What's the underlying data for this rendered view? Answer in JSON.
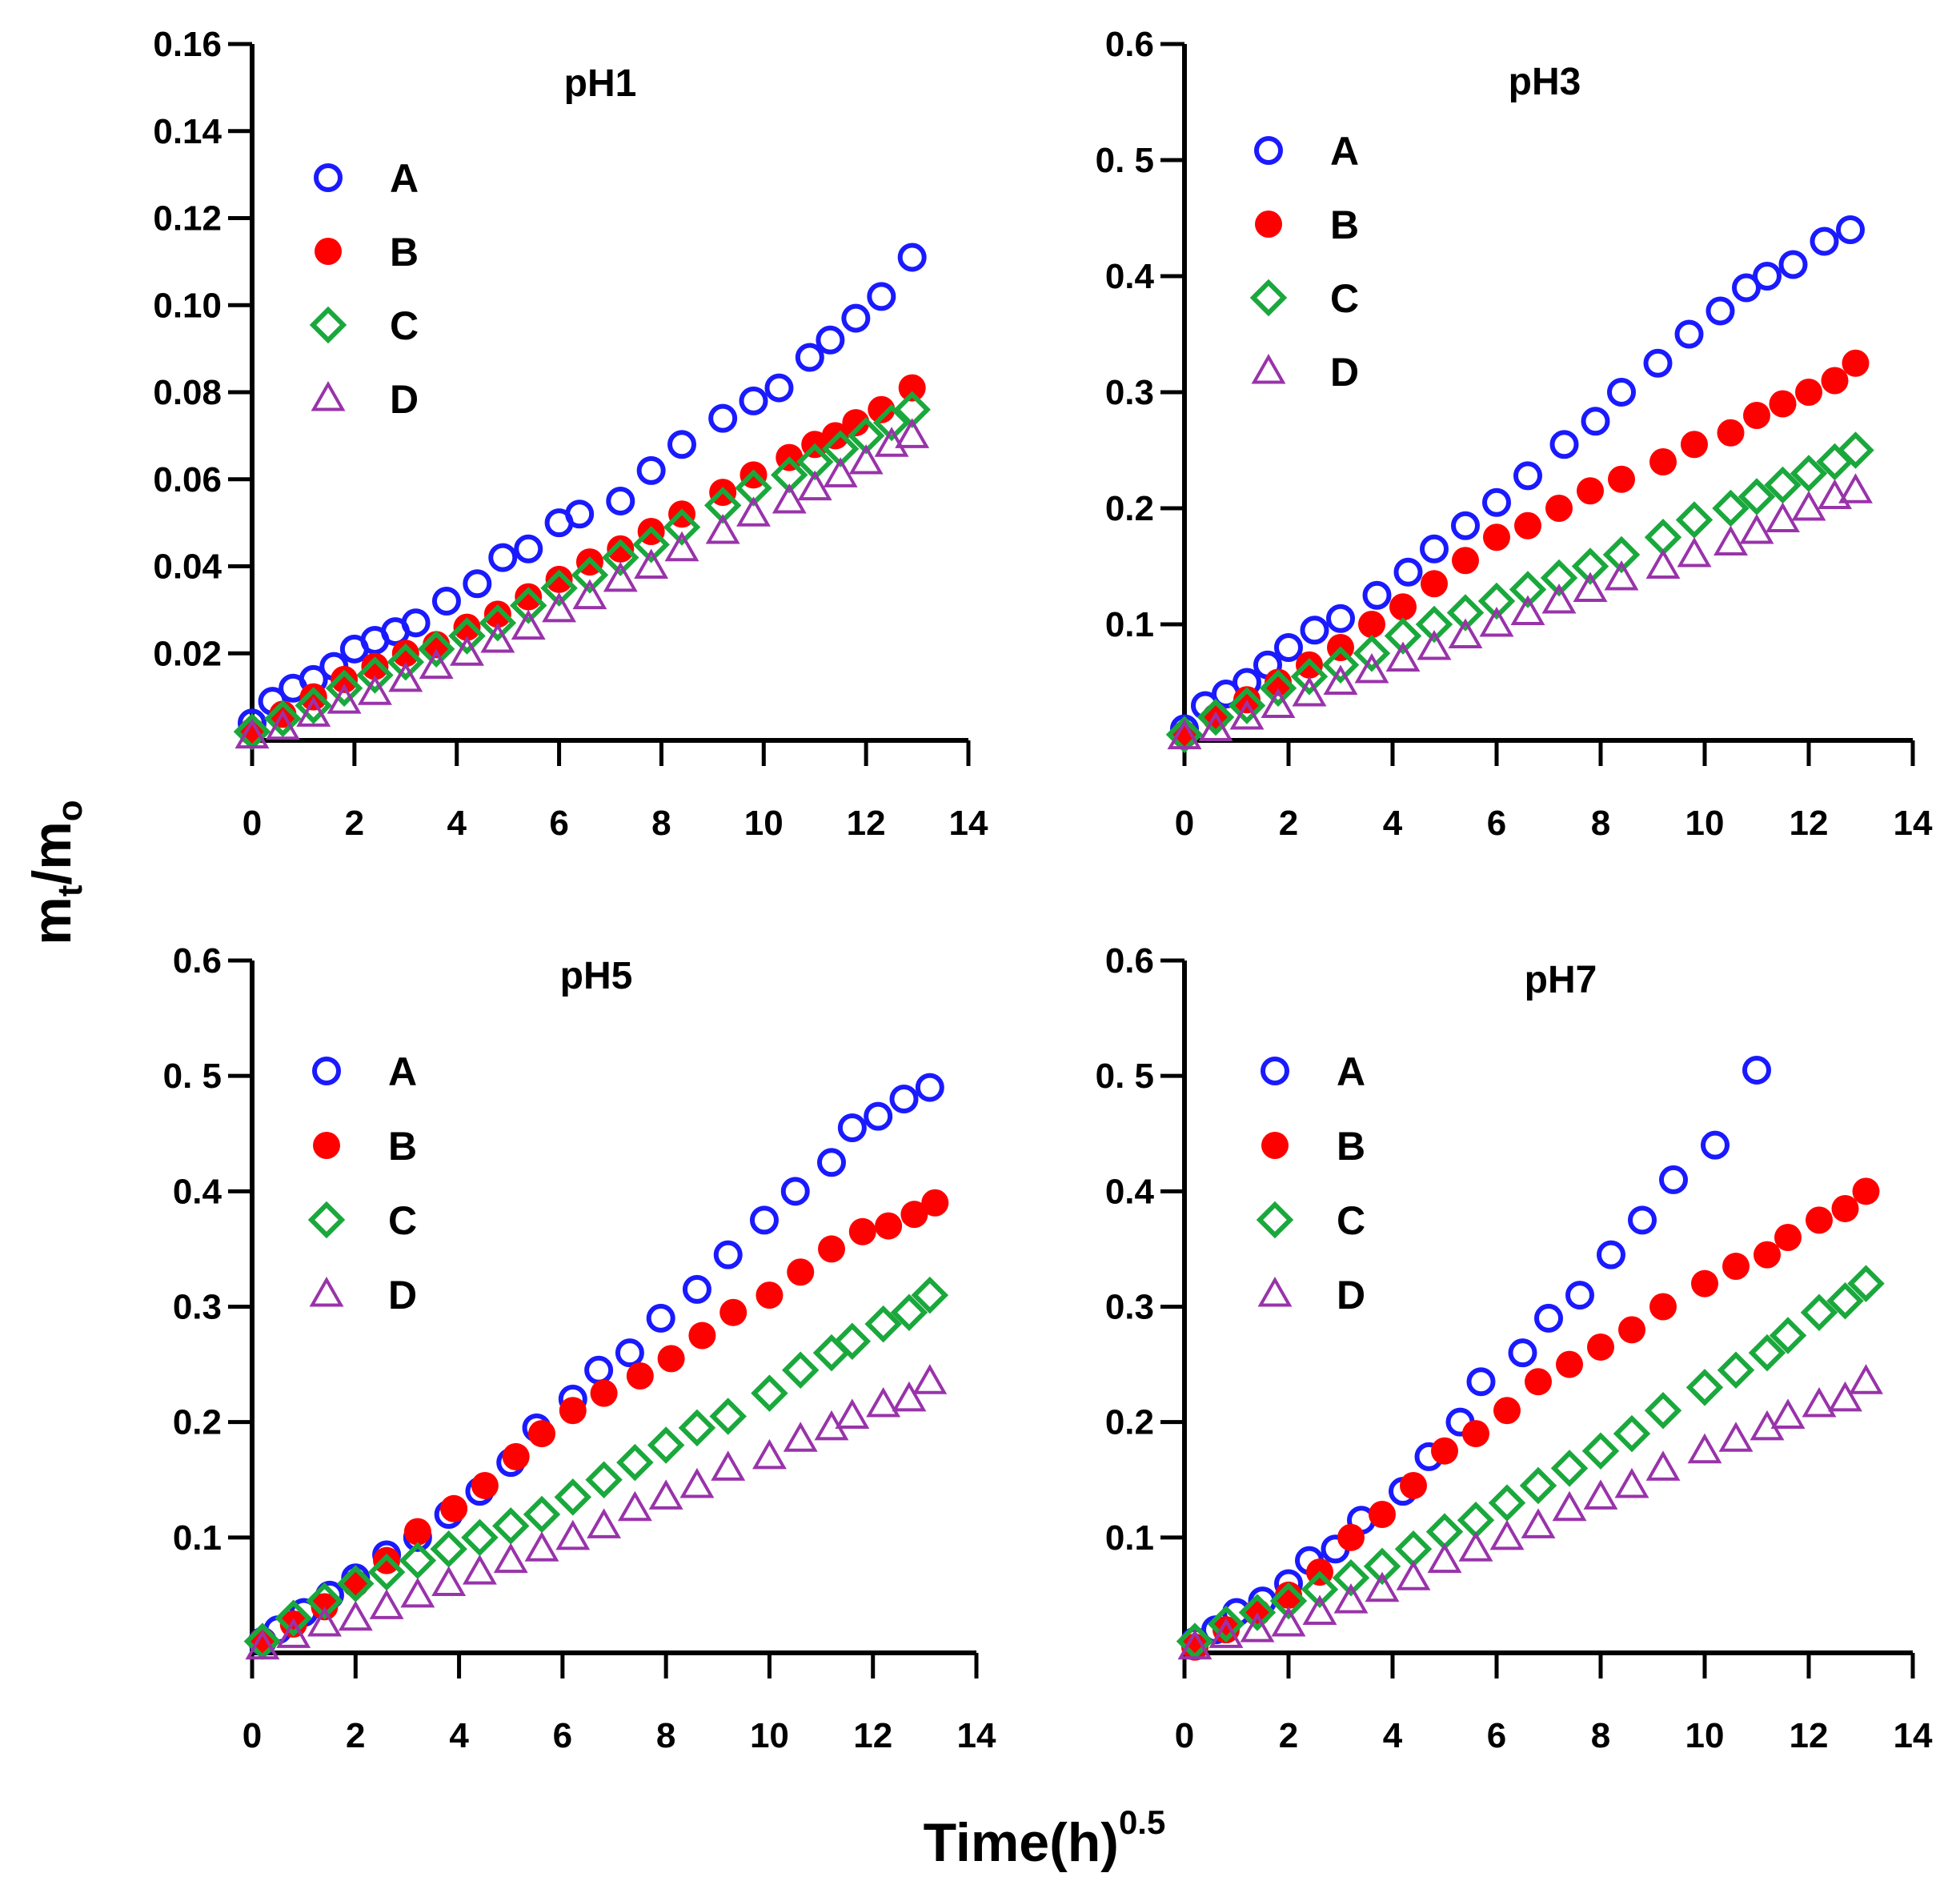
{
  "colors": {
    "A": "#1a1aff",
    "B": "#ff0000",
    "C": "#1aa83c",
    "D": "#9933aa"
  },
  "icons": {
    "A": "open-circle",
    "B": "filled-circle",
    "C": "open-diamond",
    "D": "open-triangle"
  },
  "figure": {
    "ylabel_main": "m",
    "ylabel_sub1": "t",
    "ylabel_slash": "/m",
    "ylabel_sub2": "o",
    "xlabel_main": "Time(h)",
    "xlabel_sup": "0.5"
  },
  "chart_data": [
    {
      "type": "scatter",
      "title": "pH1",
      "xlim": [
        0,
        14
      ],
      "ylim": [
        0,
        0.16
      ],
      "xticks": [
        "0",
        "2",
        "4",
        "6",
        "8",
        "10",
        "12",
        "14"
      ],
      "yticks": [
        {
          "v": 0.02,
          "label": "0.02"
        },
        {
          "v": 0.04,
          "label": "0.04"
        },
        {
          "v": 0.06,
          "label": "0.06"
        },
        {
          "v": 0.08,
          "label": "0.08"
        },
        {
          "v": 0.1,
          "label": "0.10"
        },
        {
          "v": 0.12,
          "label": "0.12"
        },
        {
          "v": 0.14,
          "label": "0.14"
        },
        {
          "v": 0.16,
          "label": "0.16"
        }
      ],
      "series": [
        {
          "name": "A",
          "x": [
            0,
            0.4,
            0.8,
            1.2,
            1.6,
            2,
            2.4,
            2.8,
            3.2,
            3.8,
            4.4,
            4.9,
            5.4,
            6,
            6.4,
            7.2,
            7.8,
            8.4,
            9.2,
            9.8,
            10.3,
            10.9,
            11.3,
            11.8,
            12.3,
            12.9
          ],
          "y": [
            0.004,
            0.009,
            0.012,
            0.014,
            0.017,
            0.021,
            0.023,
            0.025,
            0.027,
            0.032,
            0.036,
            0.042,
            0.044,
            0.05,
            0.052,
            0.055,
            0.062,
            0.068,
            0.074,
            0.078,
            0.081,
            0.088,
            0.092,
            0.097,
            0.102,
            0.111
          ]
        },
        {
          "name": "B",
          "x": [
            0,
            0.6,
            1.2,
            1.8,
            2.4,
            3,
            3.6,
            4.2,
            4.8,
            5.4,
            6,
            6.6,
            7.2,
            7.8,
            8.4,
            9.2,
            9.8,
            10.5,
            11,
            11.4,
            11.8,
            12.3,
            12.9
          ],
          "y": [
            0.002,
            0.006,
            0.01,
            0.014,
            0.017,
            0.02,
            0.022,
            0.026,
            0.029,
            0.033,
            0.037,
            0.041,
            0.044,
            0.048,
            0.052,
            0.057,
            0.061,
            0.065,
            0.068,
            0.07,
            0.073,
            0.076,
            0.081
          ]
        },
        {
          "name": "C",
          "x": [
            0,
            0.6,
            1.2,
            1.8,
            2.4,
            3,
            3.6,
            4.2,
            4.8,
            5.4,
            6,
            6.6,
            7.2,
            7.8,
            8.4,
            9.2,
            9.8,
            10.5,
            11,
            11.5,
            12,
            12.5,
            12.9
          ],
          "y": [
            0.002,
            0.005,
            0.008,
            0.012,
            0.015,
            0.018,
            0.021,
            0.024,
            0.027,
            0.031,
            0.035,
            0.038,
            0.042,
            0.045,
            0.049,
            0.054,
            0.058,
            0.061,
            0.064,
            0.067,
            0.07,
            0.073,
            0.076
          ]
        },
        {
          "name": "D",
          "x": [
            0,
            0.6,
            1.2,
            1.8,
            2.4,
            3,
            3.6,
            4.2,
            4.8,
            5.4,
            6,
            6.6,
            7.2,
            7.8,
            8.4,
            9.2,
            9.8,
            10.5,
            11,
            11.5,
            12,
            12.5,
            12.9
          ],
          "y": [
            0.001,
            0.003,
            0.006,
            0.009,
            0.011,
            0.014,
            0.017,
            0.02,
            0.023,
            0.026,
            0.03,
            0.033,
            0.037,
            0.04,
            0.044,
            0.048,
            0.052,
            0.055,
            0.058,
            0.061,
            0.064,
            0.068,
            0.07
          ]
        }
      ]
    },
    {
      "type": "scatter",
      "title": "pH3",
      "xlim": [
        0,
        14
      ],
      "ylim": [
        0,
        0.6
      ],
      "xticks": [
        "0",
        "2",
        "4",
        "6",
        "8",
        "10",
        "12",
        "14"
      ],
      "yticks": [
        {
          "v": 0.1,
          "label": "0.1"
        },
        {
          "v": 0.2,
          "label": "0.2"
        },
        {
          "v": 0.3,
          "label": "0.3"
        },
        {
          "v": 0.4,
          "label": "0.4"
        },
        {
          "v": 0.5,
          "label": "0. 5"
        },
        {
          "v": 0.6,
          "label": "0.6"
        }
      ],
      "series": [
        {
          "name": "A",
          "x": [
            0,
            0.4,
            0.8,
            1.2,
            1.6,
            2,
            2.5,
            3,
            3.7,
            4.3,
            4.8,
            5.4,
            6,
            6.6,
            7.3,
            7.9,
            8.4,
            9.1,
            9.7,
            10.3,
            10.8,
            11.2,
            11.7,
            12.3,
            12.8
          ],
          "y": [
            0.01,
            0.03,
            0.04,
            0.05,
            0.065,
            0.08,
            0.095,
            0.105,
            0.125,
            0.145,
            0.165,
            0.185,
            0.205,
            0.228,
            0.255,
            0.275,
            0.3,
            0.325,
            0.35,
            0.37,
            0.39,
            0.4,
            0.41,
            0.43,
            0.44
          ]
        },
        {
          "name": "B",
          "x": [
            0,
            0.6,
            1.2,
            1.8,
            2.4,
            3,
            3.6,
            4.2,
            4.8,
            5.4,
            6,
            6.6,
            7.2,
            7.8,
            8.4,
            9.2,
            9.8,
            10.5,
            11,
            11.5,
            12,
            12.5,
            12.9
          ],
          "y": [
            0.005,
            0.02,
            0.035,
            0.05,
            0.065,
            0.08,
            0.1,
            0.115,
            0.135,
            0.155,
            0.175,
            0.185,
            0.2,
            0.215,
            0.225,
            0.24,
            0.255,
            0.265,
            0.28,
            0.29,
            0.3,
            0.31,
            0.325
          ]
        },
        {
          "name": "C",
          "x": [
            0,
            0.6,
            1.2,
            1.8,
            2.4,
            3,
            3.6,
            4.2,
            4.8,
            5.4,
            6,
            6.6,
            7.2,
            7.8,
            8.4,
            9.2,
            9.8,
            10.5,
            11,
            11.5,
            12,
            12.5,
            12.9
          ],
          "y": [
            0.005,
            0.02,
            0.03,
            0.045,
            0.055,
            0.065,
            0.075,
            0.09,
            0.1,
            0.11,
            0.12,
            0.13,
            0.14,
            0.15,
            0.16,
            0.175,
            0.19,
            0.2,
            0.21,
            0.22,
            0.23,
            0.24,
            0.25
          ]
        },
        {
          "name": "D",
          "x": [
            0,
            0.6,
            1.2,
            1.8,
            2.4,
            3,
            3.6,
            4.2,
            4.8,
            5.4,
            6,
            6.6,
            7.2,
            7.8,
            8.4,
            9.2,
            9.8,
            10.5,
            11,
            11.5,
            12,
            12.5,
            12.9
          ],
          "y": [
            0.003,
            0.01,
            0.02,
            0.03,
            0.04,
            0.05,
            0.06,
            0.07,
            0.08,
            0.09,
            0.1,
            0.11,
            0.12,
            0.13,
            0.14,
            0.15,
            0.16,
            0.17,
            0.18,
            0.19,
            0.2,
            0.21,
            0.215
          ]
        }
      ]
    },
    {
      "type": "scatter",
      "title": "pH5",
      "xlim": [
        0,
        14
      ],
      "ylim": [
        0,
        0.6
      ],
      "xticks": [
        "0",
        "2",
        "4",
        "6",
        "8",
        "10",
        "12",
        "14"
      ],
      "yticks": [
        {
          "v": 0.1,
          "label": "0.1"
        },
        {
          "v": 0.2,
          "label": "0.2"
        },
        {
          "v": 0.3,
          "label": "0.3"
        },
        {
          "v": 0.4,
          "label": "0.4"
        },
        {
          "v": 0.5,
          "label": "0. 5"
        },
        {
          "v": 0.6,
          "label": "0.6"
        }
      ],
      "series": [
        {
          "name": "A",
          "x": [
            0.2,
            0.5,
            1,
            1.5,
            2,
            2.6,
            3.2,
            3.8,
            4.4,
            5,
            5.5,
            6.2,
            6.7,
            7.3,
            7.9,
            8.6,
            9.2,
            9.9,
            10.5,
            11.2,
            11.6,
            12.1,
            12.6,
            13.1
          ],
          "y": [
            0.01,
            0.02,
            0.035,
            0.05,
            0.065,
            0.085,
            0.1,
            0.12,
            0.14,
            0.165,
            0.195,
            0.22,
            0.245,
            0.26,
            0.29,
            0.315,
            0.345,
            0.375,
            0.4,
            0.425,
            0.455,
            0.465,
            0.48,
            0.49
          ]
        },
        {
          "name": "B",
          "x": [
            0.2,
            0.8,
            1.4,
            2,
            2.6,
            3.2,
            3.9,
            4.5,
            5.1,
            5.6,
            6.2,
            6.8,
            7.5,
            8.1,
            8.7,
            9.3,
            10,
            10.6,
            11.2,
            11.8,
            12.3,
            12.8,
            13.2
          ],
          "y": [
            0.01,
            0.025,
            0.04,
            0.06,
            0.08,
            0.105,
            0.125,
            0.145,
            0.17,
            0.19,
            0.21,
            0.225,
            0.24,
            0.255,
            0.275,
            0.295,
            0.31,
            0.33,
            0.35,
            0.365,
            0.37,
            0.38,
            0.39
          ]
        },
        {
          "name": "C",
          "x": [
            0.2,
            0.8,
            1.4,
            2,
            2.6,
            3.2,
            3.8,
            4.4,
            5,
            5.6,
            6.2,
            6.8,
            7.4,
            8,
            8.6,
            9.2,
            10,
            10.6,
            11.2,
            11.6,
            12.2,
            12.7,
            13.1
          ],
          "y": [
            0.01,
            0.03,
            0.045,
            0.06,
            0.07,
            0.08,
            0.09,
            0.1,
            0.11,
            0.12,
            0.135,
            0.15,
            0.165,
            0.18,
            0.195,
            0.205,
            0.225,
            0.245,
            0.26,
            0.27,
            0.285,
            0.295,
            0.31
          ]
        },
        {
          "name": "D",
          "x": [
            0.2,
            0.8,
            1.4,
            2,
            2.6,
            3.2,
            3.8,
            4.4,
            5,
            5.6,
            6.2,
            6.8,
            7.4,
            8,
            8.6,
            9.2,
            10,
            10.6,
            11.2,
            11.6,
            12.2,
            12.7,
            13.1
          ],
          "y": [
            0.005,
            0.015,
            0.025,
            0.03,
            0.04,
            0.05,
            0.06,
            0.07,
            0.08,
            0.09,
            0.1,
            0.11,
            0.125,
            0.135,
            0.145,
            0.16,
            0.17,
            0.185,
            0.195,
            0.205,
            0.215,
            0.22,
            0.235
          ]
        }
      ]
    },
    {
      "type": "scatter",
      "title": "pH7",
      "xlim": [
        0,
        14
      ],
      "ylim": [
        0,
        0.6
      ],
      "xticks": [
        "0",
        "2",
        "4",
        "6",
        "8",
        "10",
        "12",
        "14"
      ],
      "yticks": [
        {
          "v": 0.1,
          "label": "0.1"
        },
        {
          "v": 0.2,
          "label": "0.2"
        },
        {
          "v": 0.3,
          "label": "0.3"
        },
        {
          "v": 0.4,
          "label": "0.4"
        },
        {
          "v": 0.5,
          "label": "0. 5"
        },
        {
          "v": 0.6,
          "label": "0.6"
        }
      ],
      "series": [
        {
          "name": "A",
          "x": [
            0.2,
            0.6,
            1,
            1.5,
            2,
            2.4,
            2.9,
            3.4,
            4.2,
            4.7,
            5.3,
            5.7,
            6.5,
            7,
            7.6,
            8.2,
            8.8,
            9.4,
            10.2,
            11
          ],
          "y": [
            0.01,
            0.02,
            0.035,
            0.045,
            0.06,
            0.08,
            0.09,
            0.115,
            0.14,
            0.17,
            0.2,
            0.235,
            0.26,
            0.29,
            0.31,
            0.345,
            0.375,
            0.41,
            0.44,
            0.505
          ]
        },
        {
          "name": "B",
          "x": [
            0.2,
            0.8,
            1.4,
            2,
            2.6,
            3.2,
            3.8,
            4.4,
            5,
            5.6,
            6.2,
            6.8,
            7.4,
            8,
            8.6,
            9.2,
            10,
            10.6,
            11.2,
            11.6,
            12.2,
            12.7,
            13.1
          ],
          "y": [
            0.005,
            0.02,
            0.035,
            0.05,
            0.07,
            0.1,
            0.12,
            0.145,
            0.175,
            0.19,
            0.21,
            0.235,
            0.25,
            0.265,
            0.28,
            0.3,
            0.32,
            0.335,
            0.345,
            0.36,
            0.375,
            0.385,
            0.4
          ]
        },
        {
          "name": "C",
          "x": [
            0.2,
            0.8,
            1.4,
            2,
            2.6,
            3.2,
            3.8,
            4.4,
            5,
            5.6,
            6.2,
            6.8,
            7.4,
            8,
            8.6,
            9.2,
            10,
            10.6,
            11.2,
            11.6,
            12.2,
            12.7,
            13.1
          ],
          "y": [
            0.01,
            0.025,
            0.035,
            0.045,
            0.055,
            0.065,
            0.075,
            0.09,
            0.105,
            0.115,
            0.13,
            0.145,
            0.16,
            0.175,
            0.19,
            0.21,
            0.23,
            0.245,
            0.26,
            0.275,
            0.295,
            0.305,
            0.32
          ]
        },
        {
          "name": "D",
          "x": [
            0.2,
            0.8,
            1.4,
            2,
            2.6,
            3.2,
            3.8,
            4.4,
            5,
            5.6,
            6.2,
            6.8,
            7.4,
            8,
            8.6,
            9.2,
            10,
            10.6,
            11.2,
            11.6,
            12.2,
            12.7,
            13.1
          ],
          "y": [
            0.005,
            0.015,
            0.02,
            0.025,
            0.035,
            0.045,
            0.055,
            0.065,
            0.08,
            0.09,
            0.1,
            0.11,
            0.125,
            0.135,
            0.145,
            0.16,
            0.175,
            0.185,
            0.195,
            0.205,
            0.215,
            0.22,
            0.235
          ]
        }
      ]
    }
  ]
}
